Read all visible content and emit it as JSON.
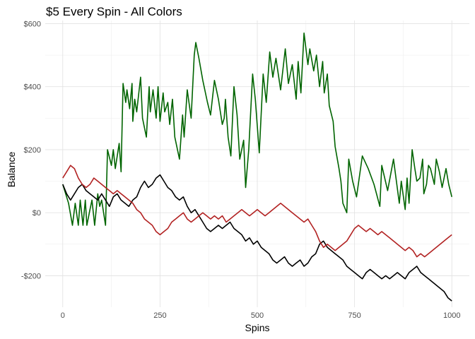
{
  "chart_data": {
    "type": "line",
    "title": "$5 Every Spin - All Colors",
    "xlabel": "Spins",
    "ylabel": "Balance",
    "xlim": [
      -45,
      1045
    ],
    "ylim": [
      -300,
      610
    ],
    "x_ticks": [
      0,
      250,
      500,
      750,
      1000
    ],
    "x_tick_labels": [
      "0",
      "250",
      "500",
      "750",
      "1000"
    ],
    "y_ticks": [
      -200,
      0,
      200,
      400,
      600
    ],
    "y_tick_labels": [
      "-$200",
      "$0",
      "$200",
      "$400",
      "$600"
    ],
    "grid": true,
    "legend": "none",
    "series": [
      {
        "color": "#006400",
        "x": [
          0,
          15,
          25,
          32,
          40,
          45,
          52,
          58,
          62,
          70,
          75,
          82,
          90,
          95,
          100,
          110,
          115,
          125,
          130,
          135,
          145,
          150,
          155,
          162,
          165,
          172,
          178,
          180,
          185,
          190,
          200,
          205,
          215,
          222,
          225,
          232,
          240,
          245,
          250,
          258,
          262,
          270,
          275,
          282,
          288,
          300,
          308,
          312,
          320,
          330,
          338,
          342,
          350,
          360,
          372,
          380,
          390,
          400,
          410,
          415,
          418,
          425,
          432,
          440,
          448,
          455,
          465,
          470,
          478,
          488,
          495,
          505,
          515,
          523,
          532,
          540,
          548,
          560,
          572,
          580,
          590,
          600,
          605,
          612,
          620,
          630,
          635,
          645,
          652,
          660,
          668,
          672,
          680,
          685,
          695,
          700,
          710,
          715,
          720,
          730,
          735,
          745,
          755,
          770,
          785,
          800,
          815,
          820,
          835,
          850,
          865,
          870,
          880,
          885,
          890,
          898,
          905,
          910,
          918,
          925,
          928,
          935,
          940,
          945,
          955,
          960,
          968,
          975,
          985,
          992,
          1000
        ],
        "values": [
          90,
          30,
          -40,
          30,
          -40,
          40,
          -40,
          40,
          -40,
          10,
          40,
          -40,
          60,
          20,
          40,
          -40,
          200,
          150,
          200,
          140,
          220,
          130,
          410,
          350,
          390,
          330,
          410,
          290,
          360,
          320,
          430,
          300,
          240,
          400,
          320,
          390,
          300,
          400,
          290,
          380,
          320,
          350,
          280,
          360,
          240,
          170,
          310,
          240,
          390,
          300,
          500,
          540,
          490,
          420,
          350,
          310,
          420,
          360,
          280,
          300,
          360,
          240,
          180,
          400,
          310,
          170,
          230,
          80,
          200,
          440,
          360,
          190,
          440,
          350,
          510,
          430,
          490,
          390,
          520,
          410,
          470,
          360,
          480,
          380,
          570,
          470,
          520,
          450,
          500,
          400,
          480,
          380,
          440,
          340,
          290,
          210,
          140,
          100,
          30,
          0,
          170,
          100,
          50,
          180,
          140,
          90,
          20,
          150,
          70,
          170,
          30,
          100,
          10,
          110,
          30,
          200,
          140,
          100,
          110,
          170,
          60,
          90,
          150,
          140,
          90,
          170,
          130,
          80,
          140,
          90,
          50
        ]
      },
      {
        "color": "#000000",
        "x": [
          0,
          10,
          20,
          30,
          40,
          50,
          60,
          70,
          80,
          90,
          100,
          110,
          120,
          130,
          140,
          150,
          160,
          170,
          180,
          190,
          200,
          210,
          220,
          230,
          240,
          250,
          260,
          270,
          280,
          290,
          300,
          310,
          320,
          330,
          340,
          350,
          360,
          370,
          380,
          390,
          400,
          410,
          420,
          430,
          440,
          450,
          460,
          470,
          480,
          490,
          500,
          510,
          520,
          530,
          540,
          550,
          560,
          570,
          580,
          590,
          600,
          610,
          620,
          630,
          640,
          650,
          660,
          670,
          680,
          690,
          700,
          710,
          720,
          730,
          740,
          750,
          760,
          770,
          780,
          790,
          800,
          810,
          820,
          830,
          840,
          850,
          860,
          870,
          880,
          890,
          900,
          910,
          920,
          930,
          940,
          950,
          960,
          970,
          980,
          990,
          1000
        ],
        "values": [
          90,
          60,
          40,
          60,
          80,
          90,
          70,
          60,
          50,
          40,
          60,
          40,
          20,
          50,
          60,
          40,
          30,
          20,
          40,
          50,
          80,
          100,
          80,
          90,
          110,
          120,
          100,
          80,
          70,
          50,
          40,
          50,
          20,
          0,
          10,
          -10,
          -30,
          -50,
          -60,
          -50,
          -40,
          -50,
          -40,
          -30,
          -50,
          -60,
          -70,
          -90,
          -80,
          -100,
          -90,
          -110,
          -120,
          -130,
          -150,
          -160,
          -150,
          -140,
          -160,
          -170,
          -160,
          -150,
          -170,
          -160,
          -140,
          -130,
          -100,
          -90,
          -110,
          -120,
          -130,
          -140,
          -150,
          -170,
          -180,
          -190,
          -200,
          -210,
          -190,
          -180,
          -190,
          -200,
          -210,
          -200,
          -210,
          -200,
          -190,
          -200,
          -210,
          -190,
          -180,
          -170,
          -190,
          -200,
          -210,
          -220,
          -230,
          -240,
          -250,
          -270,
          -280
        ]
      },
      {
        "color": "#B22222",
        "x": [
          0,
          10,
          20,
          30,
          40,
          50,
          60,
          70,
          80,
          90,
          100,
          110,
          120,
          130,
          140,
          150,
          160,
          170,
          180,
          190,
          200,
          210,
          220,
          230,
          240,
          250,
          260,
          270,
          280,
          290,
          300,
          310,
          320,
          330,
          340,
          350,
          360,
          370,
          380,
          390,
          400,
          410,
          420,
          430,
          440,
          450,
          460,
          470,
          480,
          490,
          500,
          510,
          520,
          530,
          540,
          550,
          560,
          570,
          580,
          590,
          600,
          610,
          620,
          630,
          640,
          650,
          660,
          670,
          680,
          690,
          700,
          710,
          720,
          730,
          740,
          750,
          760,
          770,
          780,
          790,
          800,
          810,
          820,
          830,
          840,
          850,
          860,
          870,
          880,
          890,
          900,
          910,
          920,
          930,
          940,
          950,
          960,
          970,
          980,
          990,
          1000
        ],
        "values": [
          110,
          130,
          150,
          140,
          110,
          90,
          80,
          90,
          110,
          100,
          90,
          80,
          70,
          60,
          70,
          60,
          50,
          40,
          30,
          10,
          0,
          -20,
          -30,
          -40,
          -60,
          -70,
          -60,
          -50,
          -30,
          -20,
          -10,
          0,
          -20,
          -30,
          -20,
          -10,
          0,
          -10,
          -20,
          -10,
          -20,
          -10,
          -30,
          -20,
          -10,
          0,
          10,
          0,
          -10,
          0,
          10,
          0,
          -10,
          0,
          10,
          20,
          30,
          20,
          10,
          0,
          -10,
          -20,
          -30,
          -20,
          -40,
          -60,
          -90,
          -110,
          -100,
          -110,
          -120,
          -110,
          -100,
          -90,
          -70,
          -50,
          -40,
          -50,
          -60,
          -50,
          -60,
          -70,
          -60,
          -70,
          -80,
          -90,
          -100,
          -110,
          -120,
          -110,
          -120,
          -140,
          -130,
          -140,
          -130,
          -120,
          -110,
          -100,
          -90,
          -80,
          -70
        ]
      }
    ]
  }
}
